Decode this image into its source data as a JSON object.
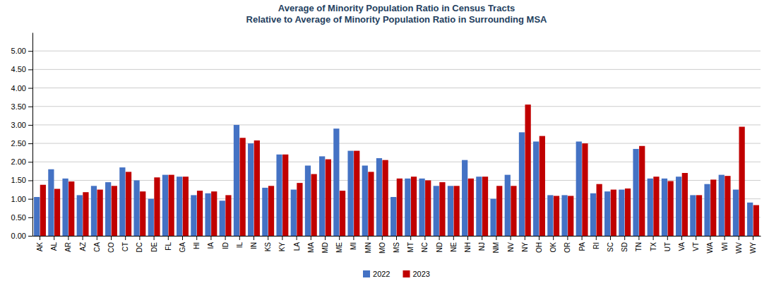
{
  "chart_data": {
    "type": "bar",
    "title": "Average of Minority Population Ratio in Census Tracts\nRelative to Average of Minority Population Ratio in Surrounding MSA",
    "categories": [
      "AK",
      "AL",
      "AR",
      "AZ",
      "CA",
      "CO",
      "CT",
      "DC",
      "DE",
      "FL",
      "GA",
      "HI",
      "IA",
      "ID",
      "IL",
      "IN",
      "KS",
      "KY",
      "LA",
      "MA",
      "MD",
      "ME",
      "MI",
      "MN",
      "MO",
      "MS",
      "MT",
      "NC",
      "ND",
      "NE",
      "NH",
      "NJ",
      "NM",
      "NV",
      "NY",
      "OH",
      "OK",
      "OR",
      "PA",
      "RI",
      "SC",
      "SD",
      "TN",
      "TX",
      "UT",
      "VA",
      "VT",
      "WA",
      "WI",
      "WV",
      "WY"
    ],
    "series": [
      {
        "name": "2022",
        "color": "#4472C4",
        "values": [
          1.05,
          1.8,
          1.55,
          1.1,
          1.35,
          1.45,
          1.85,
          1.5,
          1.0,
          1.65,
          1.6,
          1.1,
          1.15,
          0.95,
          3.0,
          2.5,
          1.3,
          2.2,
          1.25,
          1.9,
          2.15,
          2.9,
          2.3,
          1.9,
          2.1,
          1.05,
          1.55,
          1.55,
          1.35,
          1.35,
          2.05,
          1.6,
          1.0,
          1.65,
          2.8,
          2.55,
          1.1,
          1.1,
          2.55,
          1.15,
          1.2,
          1.25,
          2.35,
          1.55,
          1.55,
          1.6,
          1.1,
          1.4,
          1.65,
          1.25,
          0.9
        ]
      },
      {
        "name": "2023",
        "color": "#C00000",
        "values": [
          1.38,
          1.27,
          1.47,
          1.18,
          1.25,
          1.35,
          1.73,
          1.2,
          1.58,
          1.65,
          1.6,
          1.22,
          1.2,
          1.1,
          2.65,
          2.58,
          1.35,
          2.2,
          1.43,
          1.67,
          2.07,
          1.22,
          2.3,
          1.73,
          2.05,
          1.55,
          1.6,
          1.5,
          1.45,
          1.35,
          1.55,
          1.6,
          1.35,
          1.35,
          3.55,
          2.7,
          1.08,
          1.08,
          2.5,
          1.4,
          1.25,
          1.28,
          2.43,
          1.6,
          1.48,
          1.7,
          1.1,
          1.52,
          1.62,
          2.95,
          0.83
        ]
      }
    ],
    "ylim": [
      0,
      5.5
    ],
    "yticks": [
      {
        "value": 0.0,
        "label": "0.00"
      },
      {
        "value": 0.5,
        "label": "0.50"
      },
      {
        "value": 1.0,
        "label": "1.00"
      },
      {
        "value": 1.5,
        "label": "1.50"
      },
      {
        "value": 2.0,
        "label": "2.00"
      },
      {
        "value": 2.5,
        "label": "2.50"
      },
      {
        "value": 3.0,
        "label": "3.00"
      },
      {
        "value": 3.5,
        "label": "3.50"
      },
      {
        "value": 4.0,
        "label": "4.00"
      },
      {
        "value": 4.5,
        "label": "4.50"
      },
      {
        "value": 5.0,
        "label": "5.00"
      }
    ],
    "grid": true,
    "legend": "bottom"
  }
}
